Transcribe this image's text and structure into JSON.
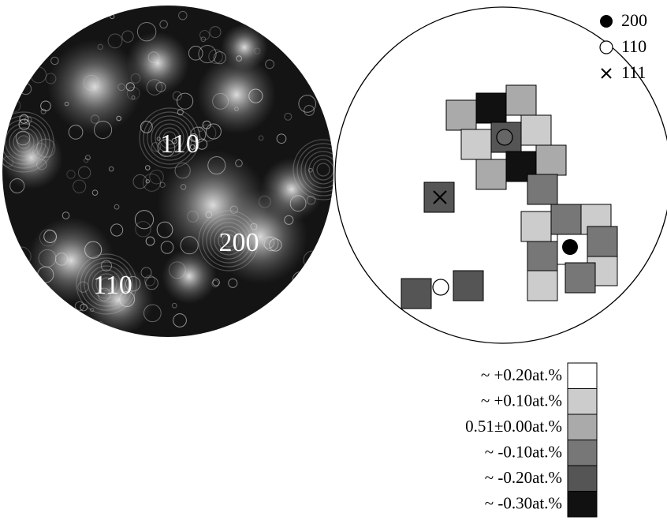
{
  "micrograph": {
    "labels": [
      "110",
      "200",
      "110"
    ]
  },
  "map": {
    "legend": [
      "200",
      "110",
      "111"
    ]
  },
  "scale": {
    "labels": [
      "~ +0.20at.%",
      "~ +0.10at.%",
      "0.51±0.00at.%",
      "~ -0.10at.%",
      "~ -0.20at.%",
      "~ -0.30at.%"
    ]
  }
}
